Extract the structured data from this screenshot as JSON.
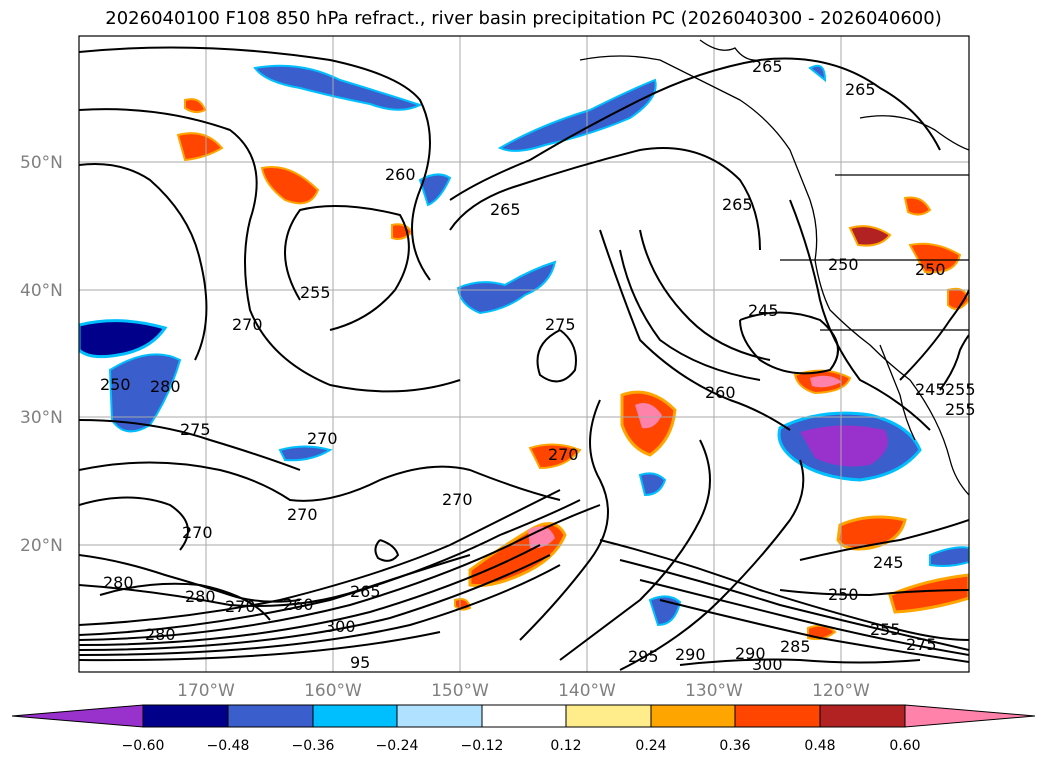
{
  "title": "2026040100 F108 850 hPa refract., river basin precipitation PC (2026040300 - 2026040600)",
  "lat_labels": [
    "50°N",
    "40°N",
    "30°N",
    "20°N"
  ],
  "lon_labels": [
    "170°W",
    "160°W",
    "150°W",
    "140°W",
    "130°W",
    "120°W"
  ],
  "contour_labels": [
    "265",
    "265",
    "260",
    "265",
    "265",
    "255",
    "270",
    "275",
    "280",
    "250",
    "275",
    "270",
    "270",
    "270",
    "270",
    "270",
    "270",
    "280",
    "280",
    "260",
    "265",
    "300",
    "245",
    "260",
    "250",
    "245",
    "255",
    "250",
    "255",
    "275",
    "285",
    "290",
    "295",
    "290",
    "300",
    "245",
    "255",
    "95",
    "250",
    "280"
  ],
  "colorbar": {
    "ticks": [
      "−0.60",
      "−0.48",
      "−0.36",
      "−0.24",
      "−0.12",
      "0.12",
      "0.24",
      "0.36",
      "0.48",
      "0.60"
    ],
    "colors": [
      "#9932cc",
      "#00008b",
      "#3a5fcd",
      "#00bfff",
      "#b0e2ff",
      "#ffffff",
      "#ffec8b",
      "#ffa500",
      "#ff4500",
      "#b22222",
      "#ff82ab"
    ]
  },
  "legend_colors": {
    "contour": "#000000",
    "grid": "#aaaaaa",
    "coast": "#000000"
  }
}
